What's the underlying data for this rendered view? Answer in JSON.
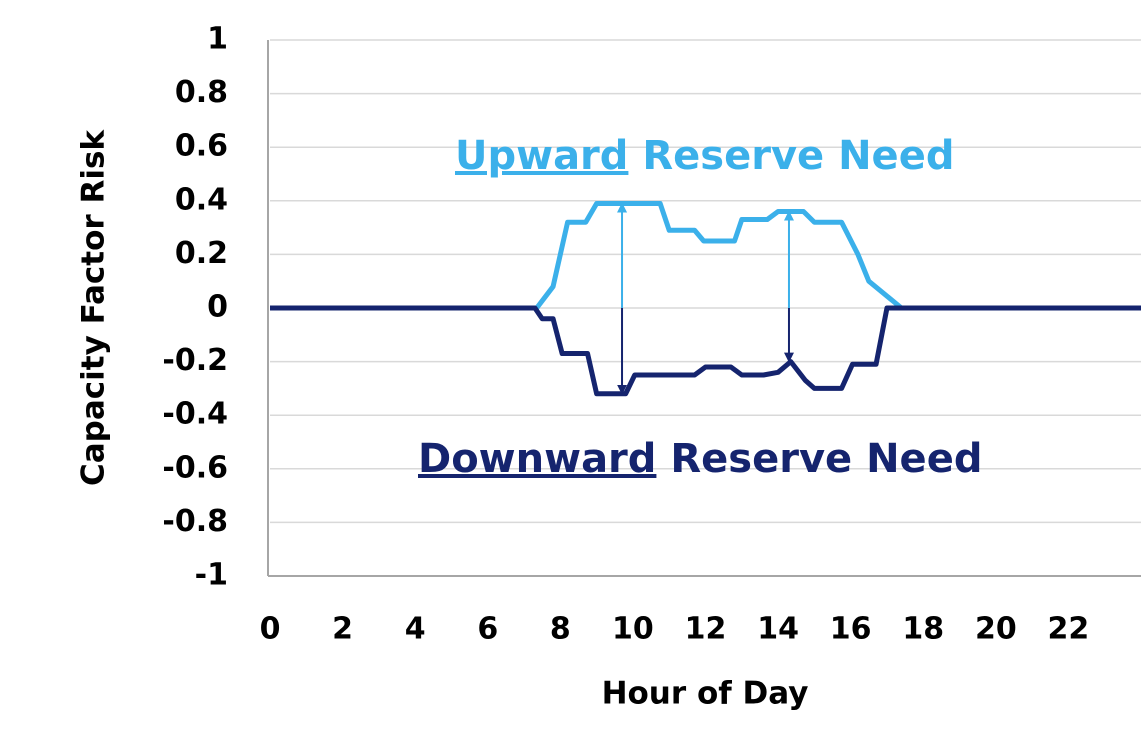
{
  "chart_data": {
    "type": "line",
    "ylabel": "Capacity Factor Risk",
    "xlabel": "Hour of Day",
    "xlim": [
      0,
      24
    ],
    "ylim": [
      -1,
      1
    ],
    "xticks": [
      0,
      2,
      4,
      6,
      8,
      10,
      12,
      14,
      16,
      18,
      20,
      22
    ],
    "yticks": [
      1,
      0.8,
      0.6,
      0.4,
      0.2,
      0,
      -0.2,
      -0.4,
      -0.6,
      -0.8,
      -1
    ],
    "grid": true,
    "series": [
      {
        "color": "#3bb0ea",
        "x": [
          0,
          7.35,
          7.8,
          8.2,
          8.7,
          9.0,
          10.75,
          11.0,
          11.7,
          11.95,
          12.8,
          13.0,
          13.7,
          14.0,
          14.7,
          15.0,
          15.75,
          16.2,
          16.5,
          17.4,
          24
        ],
        "values": [
          0,
          0,
          0.08,
          0.32,
          0.32,
          0.39,
          0.39,
          0.29,
          0.29,
          0.25,
          0.25,
          0.33,
          0.33,
          0.36,
          0.36,
          0.32,
          0.32,
          0.2,
          0.1,
          0,
          0
        ]
      },
      {
        "color": "#15246e",
        "x": [
          0,
          7.3,
          7.5,
          7.8,
          8.05,
          8.75,
          9.0,
          9.8,
          10.05,
          11.7,
          12.0,
          12.7,
          13.0,
          13.6,
          14.0,
          14.35,
          14.75,
          15.0,
          15.75,
          16.05,
          16.7,
          17.0,
          24
        ],
        "values": [
          0,
          0,
          -0.04,
          -0.04,
          -0.17,
          -0.17,
          -0.32,
          -0.32,
          -0.25,
          -0.25,
          -0.22,
          -0.22,
          -0.25,
          -0.25,
          -0.24,
          -0.2,
          -0.27,
          -0.3,
          -0.3,
          -0.21,
          -0.21,
          0,
          0
        ]
      }
    ],
    "arrows": [
      {
        "x": 9.7,
        "up": 0.39,
        "down": -0.32
      },
      {
        "x": 14.3,
        "up": 0.36,
        "down": -0.2
      }
    ],
    "annotations": [
      {
        "underlined": "Upward",
        "text": "Reserve Need",
        "color": "#3bb0ea"
      },
      {
        "underlined": "Downward",
        "text": "Reserve Need",
        "color": "#15246e"
      }
    ]
  }
}
